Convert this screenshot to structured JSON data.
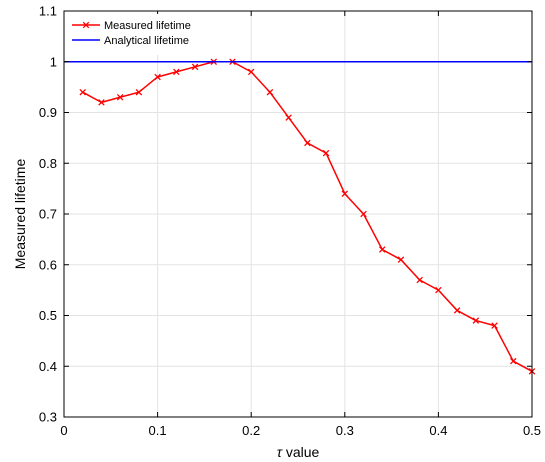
{
  "chart_data": {
    "type": "line",
    "xlabel_symbol": "τ",
    "xlabel_text": " value",
    "ylabel": "Measured lifetime",
    "xlim": [
      0,
      0.5
    ],
    "ylim": [
      0.3,
      1.1
    ],
    "xticks": [
      "0",
      "0.1",
      "0.2",
      "0.3",
      "0.4",
      "0.5"
    ],
    "xtick_values": [
      0,
      0.1,
      0.2,
      0.3,
      0.4,
      0.5
    ],
    "yticks": [
      "0.3",
      "0.4",
      "0.5",
      "0.6",
      "0.7",
      "0.8",
      "0.9",
      "1",
      "1.1"
    ],
    "ytick_values": [
      0.3,
      0.4,
      0.5,
      0.6,
      0.7,
      0.8,
      0.9,
      1.0,
      1.1
    ],
    "grid": true,
    "legend_position": "top-left",
    "series": [
      {
        "name": "Measured lifetime",
        "color": "#ff0000",
        "marker": "x",
        "x": [
          0.02,
          0.04,
          0.06,
          0.08,
          0.1,
          0.12,
          0.14,
          0.16,
          0.18,
          0.2,
          0.22,
          0.24,
          0.26,
          0.28,
          0.3,
          0.32,
          0.34,
          0.36,
          0.38,
          0.4,
          0.42,
          0.44,
          0.46,
          0.48,
          0.5
        ],
        "y": [
          0.94,
          0.92,
          0.93,
          0.94,
          0.97,
          0.98,
          0.99,
          1.0,
          1.0,
          0.98,
          0.94,
          0.89,
          0.84,
          0.82,
          0.74,
          0.7,
          0.63,
          0.61,
          0.57,
          0.55,
          0.51,
          0.49,
          0.48,
          0.41,
          0.39
        ]
      },
      {
        "name": "Analytical lifetime",
        "color": "#0000ff",
        "marker": "none",
        "x": [
          0,
          0.5
        ],
        "y": [
          1.0,
          1.0
        ]
      }
    ]
  }
}
